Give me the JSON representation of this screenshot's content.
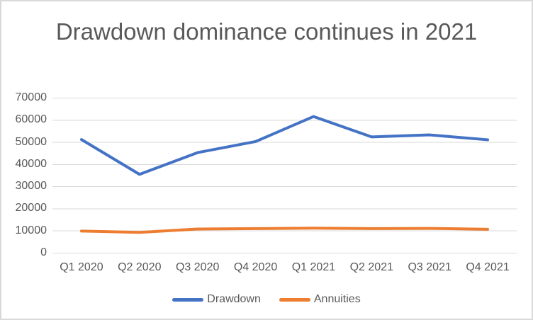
{
  "chart_data": {
    "type": "line",
    "title": "Drawdown dominance continues in 2021",
    "categories": [
      "Q1 2020",
      "Q2 2020",
      "Q3 2020",
      "Q4 2020",
      "Q1 2021",
      "Q2 2021",
      "Q3 2021",
      "Q4 2021"
    ],
    "series": [
      {
        "name": "Drawdown",
        "color": "#4472c4",
        "values": [
          51100,
          35400,
          45200,
          50200,
          61500,
          52300,
          53200,
          51000
        ]
      },
      {
        "name": "Annuities",
        "color": "#ed7d31",
        "values": [
          9800,
          9200,
          10700,
          10900,
          11100,
          10900,
          11000,
          10600
        ]
      }
    ],
    "ylim": [
      0,
      70000
    ],
    "yticks": [
      0,
      10000,
      20000,
      30000,
      40000,
      50000,
      60000,
      70000
    ],
    "grid": true,
    "legend_position": "bottom",
    "colors": {
      "text": "#595959",
      "gridline": "#d9d9d9",
      "border": "#d9d9d9"
    }
  }
}
